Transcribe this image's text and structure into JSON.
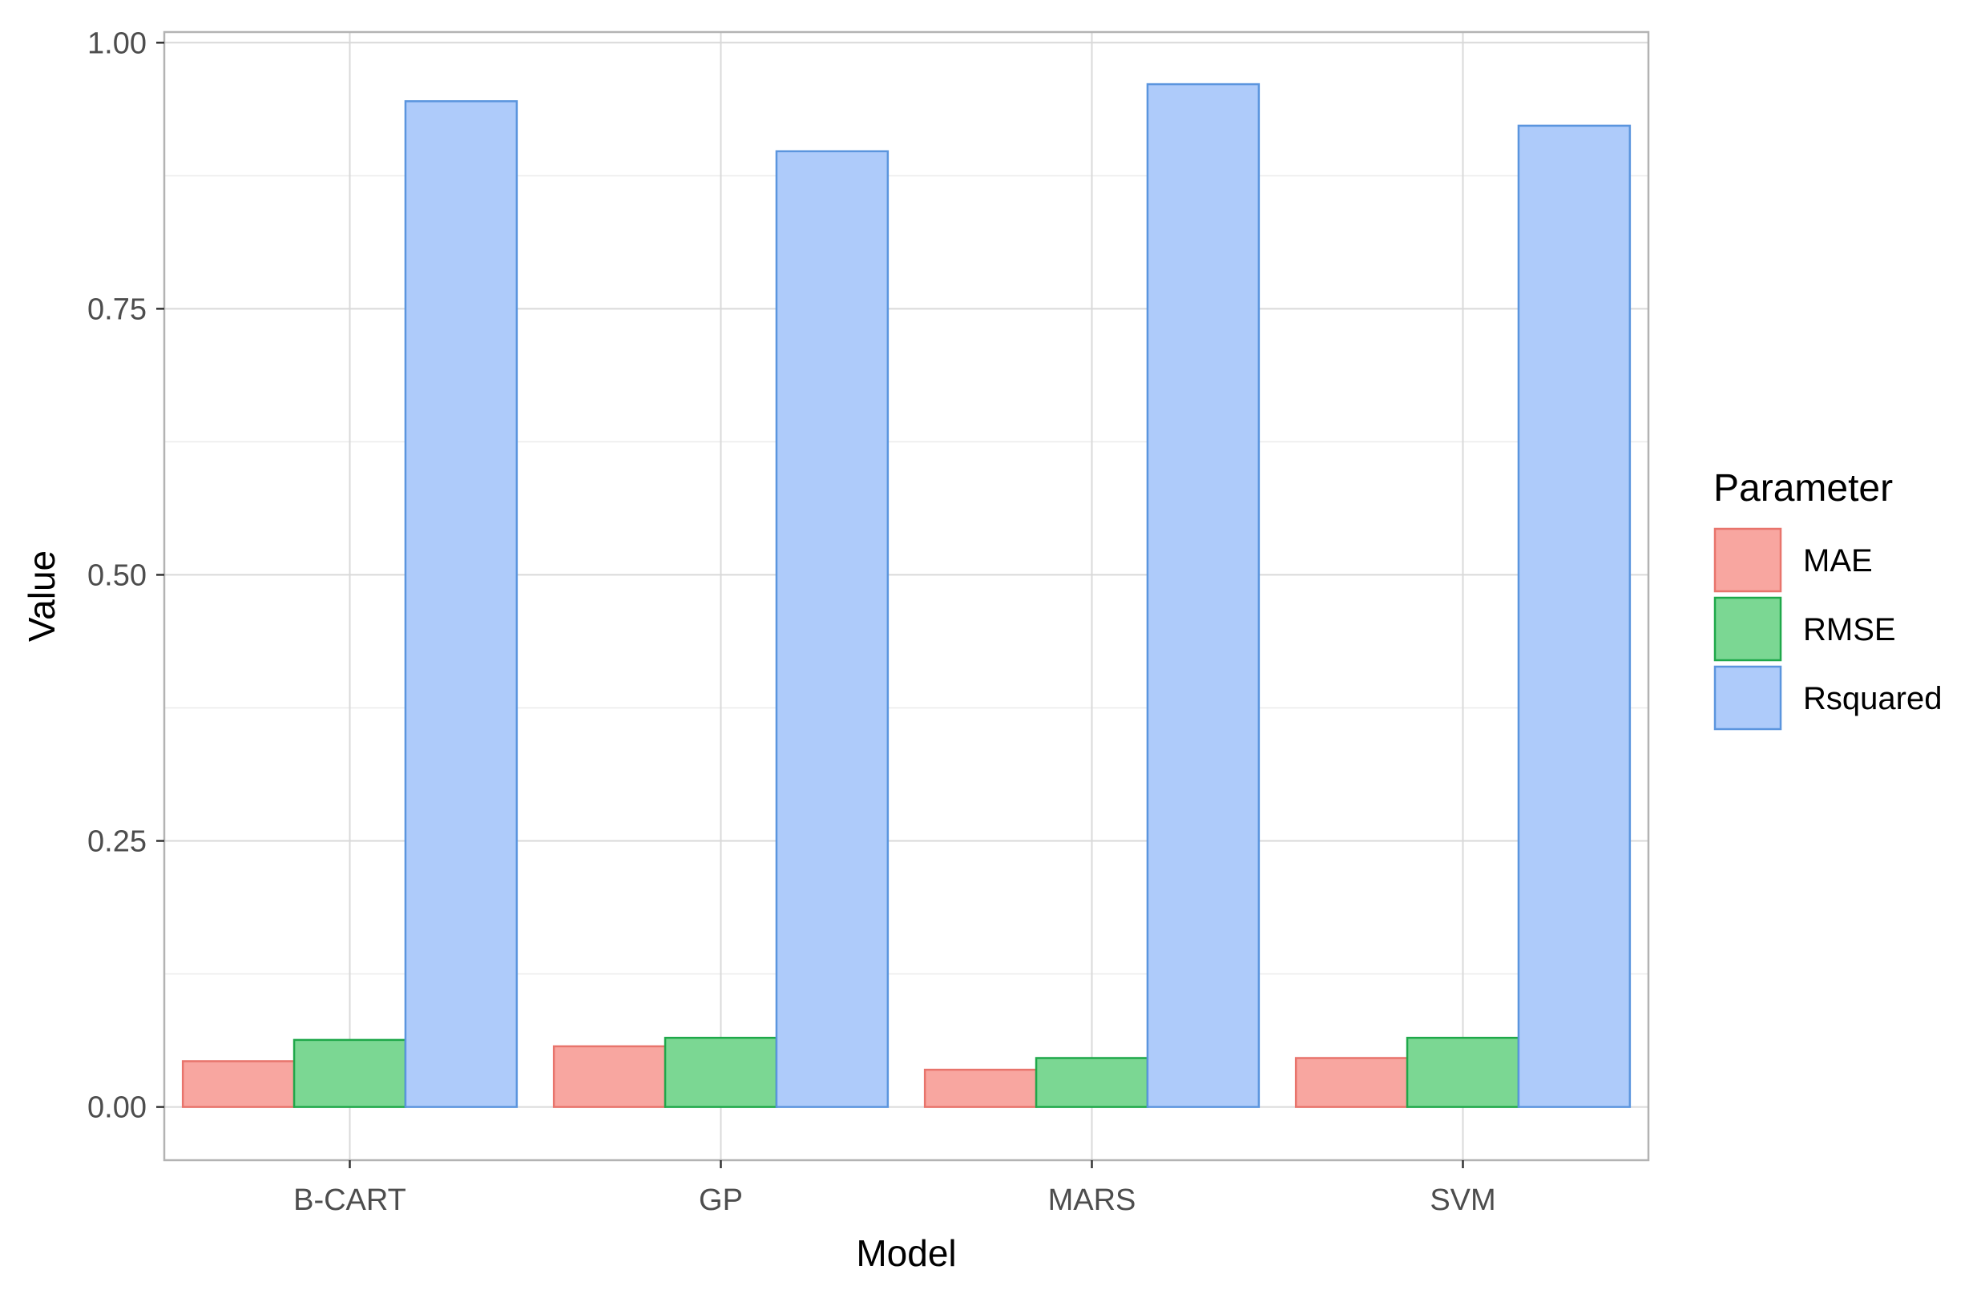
{
  "chart_data": {
    "type": "bar",
    "title": "",
    "xlabel": "Model",
    "ylabel": "Value",
    "categories": [
      "B-CART",
      "GP",
      "MARS",
      "SVM"
    ],
    "series": [
      {
        "name": "MAE",
        "values": [
          0.043,
          0.057,
          0.035,
          0.046
        ],
        "fill": "#F8A6A0",
        "stroke": "#E8746C"
      },
      {
        "name": "RMSE",
        "values": [
          0.063,
          0.065,
          0.046,
          0.065
        ],
        "fill": "#7BD793",
        "stroke": "#1FA84A"
      },
      {
        "name": "Rsquared",
        "values": [
          0.945,
          0.898,
          0.961,
          0.922
        ],
        "fill": "#AECBFA",
        "stroke": "#5B95DE"
      }
    ],
    "ylim": [
      -0.05,
      1.01
    ],
    "yticks": [
      0.0,
      0.25,
      0.5,
      0.75,
      1.0
    ],
    "ytick_labels": [
      "0.00",
      "0.25",
      "0.50",
      "0.75",
      "1.00"
    ],
    "legend": {
      "title": "Parameter",
      "position": "right"
    },
    "grid": true,
    "theme": "light"
  }
}
